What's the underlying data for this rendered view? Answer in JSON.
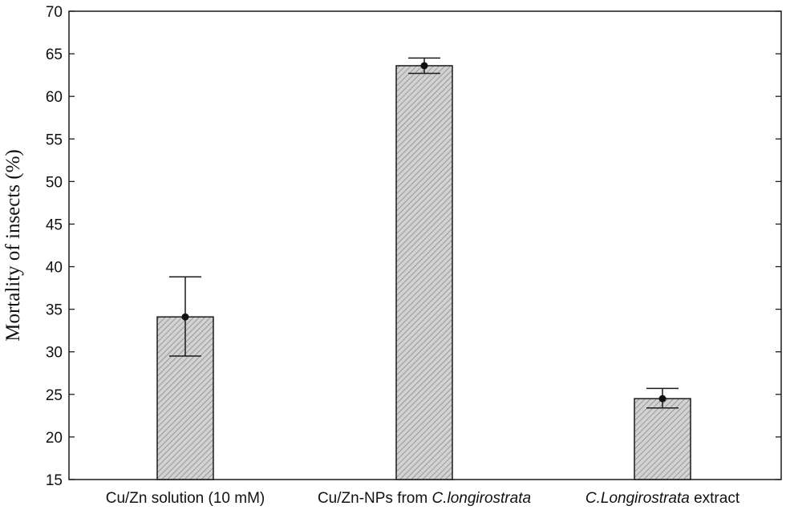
{
  "chart_data": {
    "type": "bar",
    "title": "",
    "xlabel": "",
    "ylabel": "Mortality of insects (%)",
    "ylim": [
      15,
      70
    ],
    "yticks": [
      "15",
      "20",
      "25",
      "30",
      "35",
      "40",
      "45",
      "50",
      "55",
      "60",
      "65",
      "70"
    ],
    "categories": [
      {
        "parts": [
          {
            "text": "Cu/Zn solution (10 mM)",
            "italic": false
          }
        ]
      },
      {
        "parts": [
          {
            "text": "Cu/Zn-NPs from ",
            "italic": false
          },
          {
            "text": "C.longirostrata",
            "italic": true
          }
        ]
      },
      {
        "parts": [
          {
            "text": "C.Longirostrata",
            "italic": true
          },
          {
            "text": " extract",
            "italic": false
          }
        ]
      }
    ],
    "values": [
      34.1,
      63.6,
      24.5
    ],
    "error_low": [
      29.5,
      62.7,
      23.4
    ],
    "error_high": [
      38.8,
      64.5,
      25.7
    ],
    "grid": false,
    "bar_color": "#cfcfcf",
    "hatch_color": "#8a8a8a",
    "edge_color": "#1a1a1a"
  }
}
